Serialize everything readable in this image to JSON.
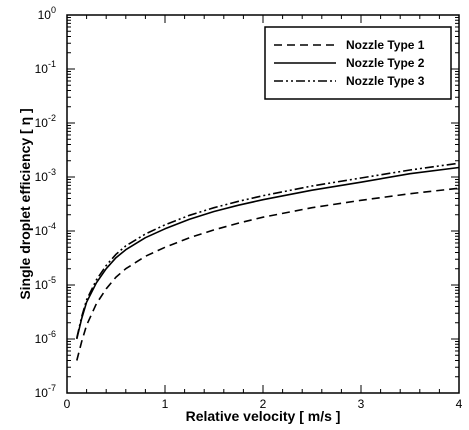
{
  "chart_data": {
    "type": "line",
    "title": "",
    "xlabel": "Relative velocity [ m/s ]",
    "ylabel": "Single droplet efficiency [ η ]",
    "xlim": [
      0,
      4
    ],
    "ylim": [
      1e-07,
      1
    ],
    "yscale": "log",
    "x_ticks": [
      "0",
      "1",
      "2",
      "3",
      "4"
    ],
    "y_ticks": [
      {
        "base": "10",
        "exp": "-7"
      },
      {
        "base": "10",
        "exp": "-6"
      },
      {
        "base": "10",
        "exp": "-5"
      },
      {
        "base": "10",
        "exp": "-4"
      },
      {
        "base": "10",
        "exp": "-3"
      },
      {
        "base": "10",
        "exp": "-2"
      },
      {
        "base": "10",
        "exp": "-1"
      },
      {
        "base": "10",
        "exp": "0"
      }
    ],
    "grid": false,
    "legend_position": "top-right",
    "x": [
      0.1,
      0.15,
      0.2,
      0.3,
      0.4,
      0.5,
      0.6,
      0.8,
      1.0,
      1.25,
      1.5,
      1.75,
      2.0,
      2.5,
      3.0,
      3.5,
      4.0
    ],
    "series": [
      {
        "name": "Nozzle Type 1",
        "style": "dashed",
        "values": [
          4e-07,
          9e-07,
          1.8e-06,
          4.5e-06,
          8.5e-06,
          1.4e-05,
          2e-05,
          3.4e-05,
          5e-05,
          7.5e-05,
          0.000105,
          0.00014,
          0.00018,
          0.00027,
          0.00037,
          0.00049,
          0.00062
        ]
      },
      {
        "name": "Nozzle Type 2",
        "style": "solid",
        "values": [
          1e-06,
          2.4e-06,
          4.8e-06,
          1.1e-05,
          2e-05,
          3.2e-05,
          4.5e-05,
          7.5e-05,
          0.00011,
          0.000165,
          0.00023,
          0.0003,
          0.00038,
          0.00057,
          0.0008,
          0.00115,
          0.0015
        ]
      },
      {
        "name": "Nozzle Type 3",
        "style": "dashdotdot",
        "values": [
          1.05e-06,
          2.6e-06,
          5.3e-06,
          1.25e-05,
          2.3e-05,
          3.7e-05,
          5.3e-05,
          8.8e-05,
          0.00013,
          0.000195,
          0.00027,
          0.000355,
          0.00045,
          0.00068,
          0.00096,
          0.00135,
          0.0018
        ]
      }
    ]
  }
}
